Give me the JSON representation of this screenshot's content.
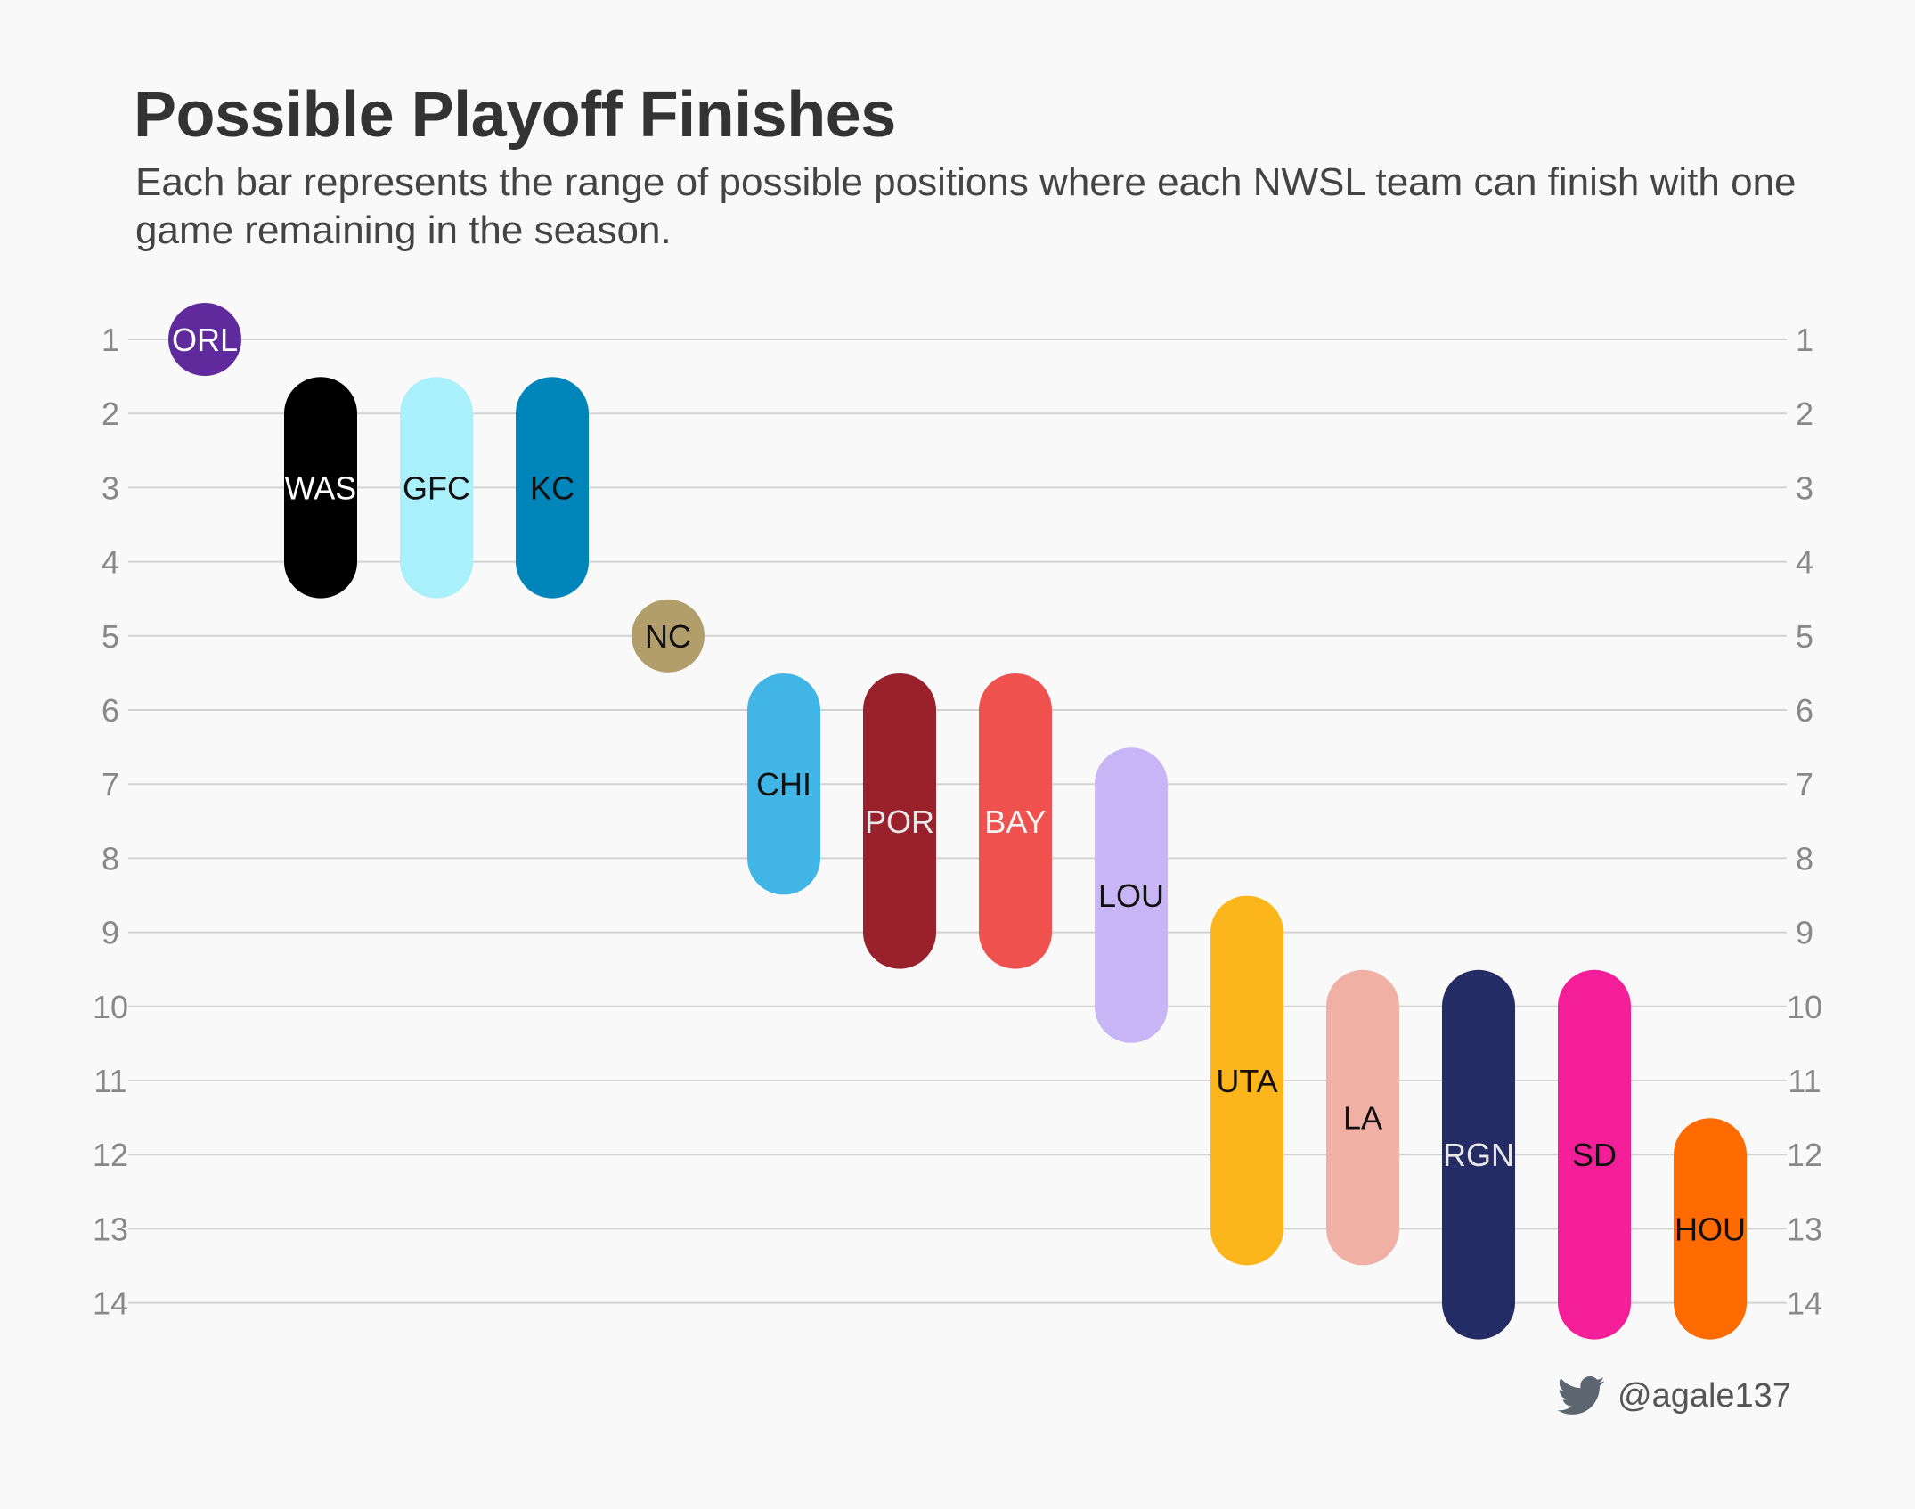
{
  "title": "Possible Playoff Finishes",
  "subtitle": "Each bar represents the range of possible positions where each NWSL team can finish with one game remaining in the season.",
  "credit": {
    "handle": "@agale137",
    "icon": "twitter-bird-icon",
    "icon_color": "#5c6570"
  },
  "chart_data": {
    "type": "range-bar",
    "title": "Possible Playoff Finishes",
    "y_ticks": [
      1,
      2,
      3,
      4,
      5,
      6,
      7,
      8,
      9,
      10,
      11,
      12,
      13,
      14
    ],
    "y_range": [
      1,
      14
    ],
    "y_inverted": true,
    "grid": true,
    "series": [
      {
        "team": "ORL",
        "best": 1,
        "worst": 1,
        "color": "#5e2a9c",
        "text_color": "#ffffff"
      },
      {
        "team": "WAS",
        "best": 2,
        "worst": 4,
        "color": "#000000",
        "text_color": "#ffffff"
      },
      {
        "team": "GFC",
        "best": 2,
        "worst": 4,
        "color": "#aaf0fb",
        "text_color": "#111111"
      },
      {
        "team": "KC",
        "best": 2,
        "worst": 4,
        "color": "#0085ba",
        "text_color": "#111111"
      },
      {
        "team": "NC",
        "best": 5,
        "worst": 5,
        "color": "#b29e6a",
        "text_color": "#111111"
      },
      {
        "team": "CHI",
        "best": 6,
        "worst": 8,
        "color": "#41b6e6",
        "text_color": "#111111"
      },
      {
        "team": "POR",
        "best": 6,
        "worst": 9,
        "color": "#99212b",
        "text_color": "#e8e8e8"
      },
      {
        "team": "BAY",
        "best": 6,
        "worst": 9,
        "color": "#ef524e",
        "text_color": "#f4f4f4"
      },
      {
        "team": "LOU",
        "best": 7,
        "worst": 10,
        "color": "#c8b5f5",
        "text_color": "#111111"
      },
      {
        "team": "UTA",
        "best": 9,
        "worst": 13,
        "color": "#fcb61b",
        "text_color": "#111111"
      },
      {
        "team": "LA",
        "best": 10,
        "worst": 13,
        "color": "#f0b0a4",
        "text_color": "#111111"
      },
      {
        "team": "RGN",
        "best": 10,
        "worst": 14,
        "color": "#242c65",
        "text_color": "#e8e8e8"
      },
      {
        "team": "SD",
        "best": 10,
        "worst": 14,
        "color": "#f41f98",
        "text_color": "#111111"
      },
      {
        "team": "HOU",
        "best": 12,
        "worst": 14,
        "color": "#ff6b00",
        "text_color": "#111111"
      }
    ]
  }
}
